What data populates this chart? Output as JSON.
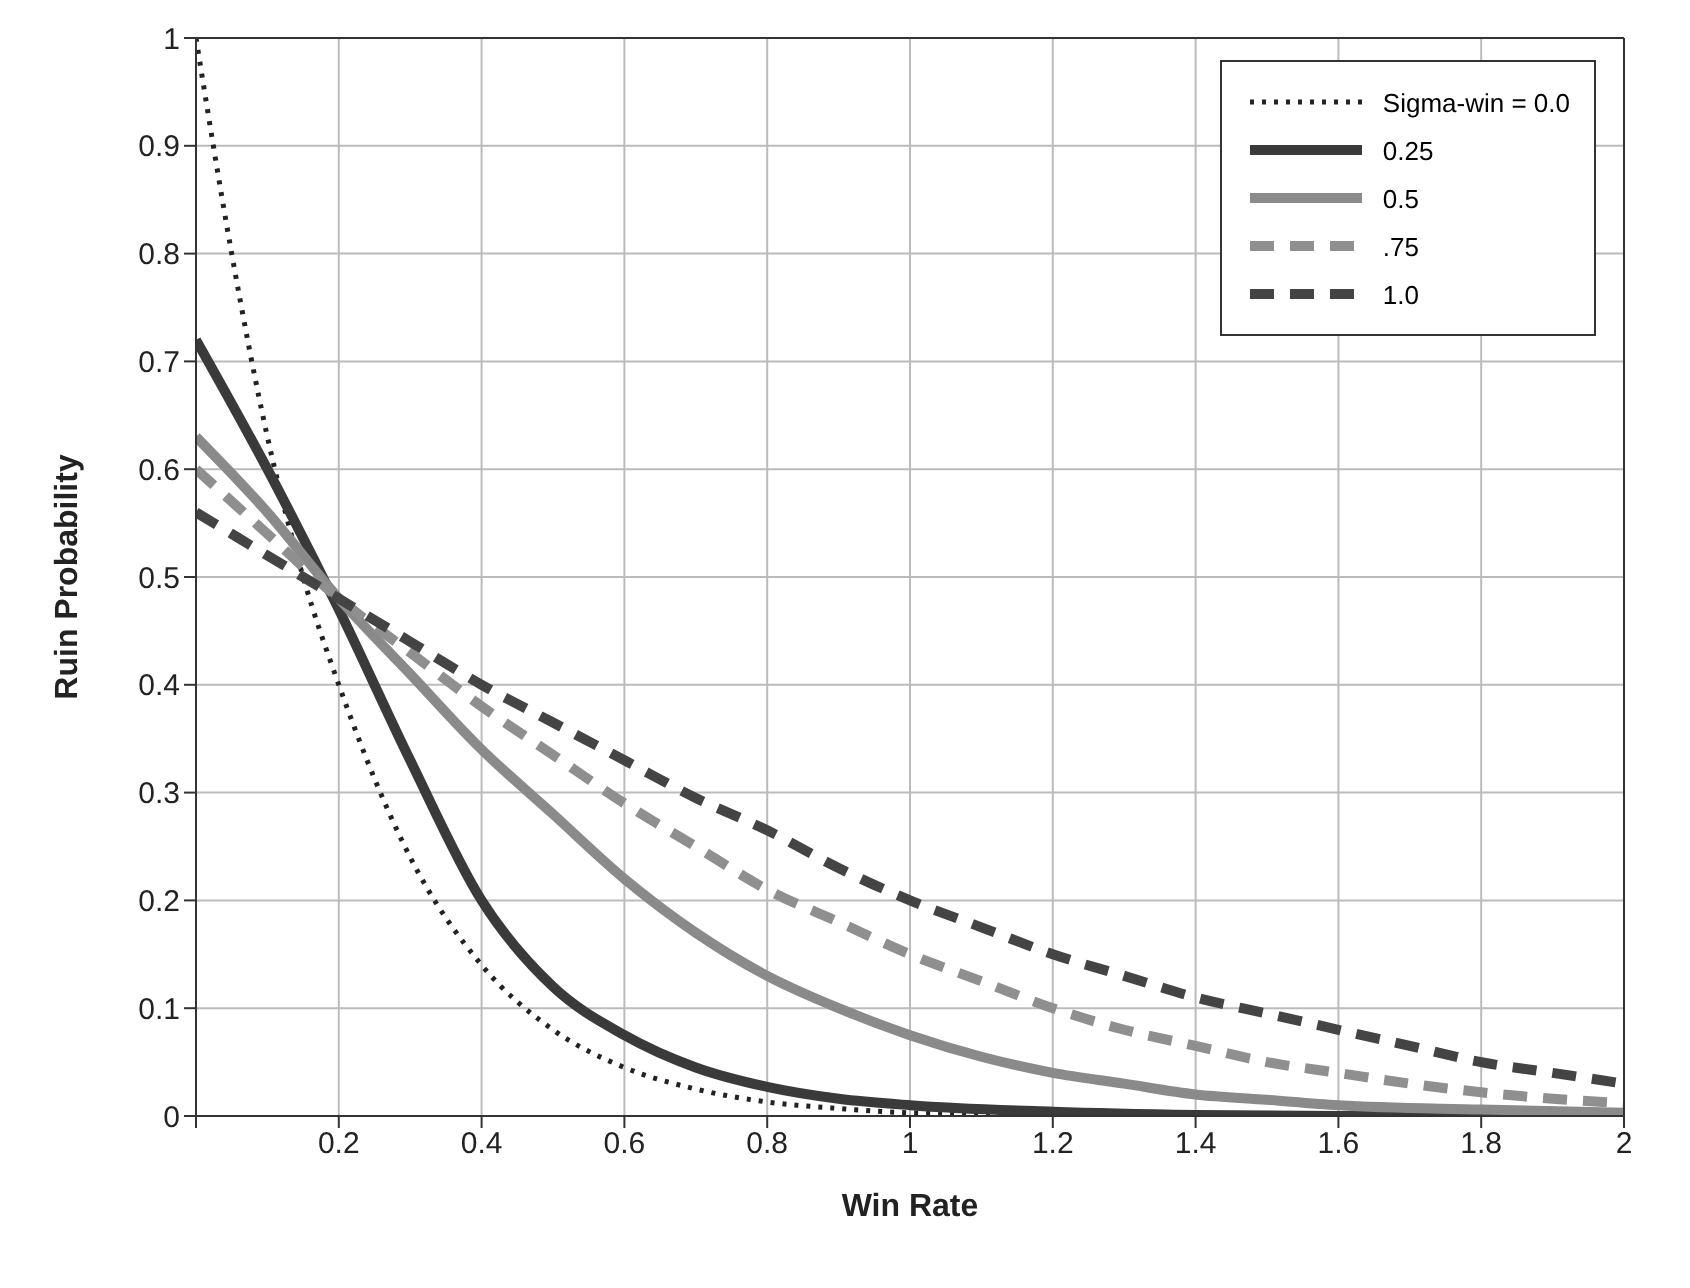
{
  "chart_data": {
    "type": "line",
    "xlabel": "Win Rate",
    "ylabel": "Ruin Probability",
    "xlim": [
      0,
      2
    ],
    "ylim": [
      0,
      1
    ],
    "xticks": [
      {
        "value": 0,
        "label": null
      },
      0.2,
      0.4,
      0.6,
      0.8,
      1,
      1.2,
      1.4,
      1.6,
      1.8,
      2
    ],
    "yticks": [
      0,
      0.1,
      0.2,
      0.3,
      0.4,
      0.5,
      0.6,
      0.7,
      0.8,
      0.9,
      1
    ],
    "grid": true,
    "legend": "top right",
    "marker": "none",
    "series": [
      {
        "name": "Sigma-win = 0.0",
        "color": "#222222",
        "line_style": "dotted",
        "x": [
          0,
          0.05,
          0.1,
          0.15,
          0.2,
          0.3,
          0.4,
          0.5,
          0.6,
          0.7,
          0.8,
          0.9,
          1,
          1.2,
          1.4,
          2
        ],
        "values": [
          1,
          0.8,
          0.63,
          0.5,
          0.4,
          0.24,
          0.14,
          0.08,
          0.045,
          0.025,
          0.013,
          0.007,
          0.003,
          0.001,
          0,
          0
        ]
      },
      {
        "name": "0.25",
        "color": "#3a3a3a",
        "line_style": "solid",
        "x": [
          0,
          0.1,
          0.2,
          0.3,
          0.4,
          0.5,
          0.6,
          0.7,
          0.8,
          0.9,
          1,
          1.2,
          1.4,
          1.6,
          2
        ],
        "values": [
          0.72,
          0.6,
          0.47,
          0.33,
          0.2,
          0.12,
          0.075,
          0.045,
          0.027,
          0.016,
          0.01,
          0.004,
          0.001,
          0,
          0
        ]
      },
      {
        "name": "0.5",
        "color": "#8a8a8a",
        "line_style": "solid",
        "x": [
          0,
          0.1,
          0.2,
          0.3,
          0.4,
          0.5,
          0.6,
          0.7,
          0.8,
          0.9,
          1,
          1.1,
          1.2,
          1.3,
          1.4,
          1.5,
          1.6,
          1.8,
          2
        ],
        "values": [
          0.63,
          0.56,
          0.48,
          0.41,
          0.34,
          0.28,
          0.22,
          0.17,
          0.13,
          0.1,
          0.075,
          0.055,
          0.04,
          0.03,
          0.02,
          0.015,
          0.01,
          0.006,
          0.003
        ]
      },
      {
        "name": ".75",
        "color": "#8f8f8f",
        "line_style": "dashed",
        "x": [
          0,
          0.1,
          0.2,
          0.3,
          0.4,
          0.5,
          0.6,
          0.7,
          0.8,
          0.9,
          1,
          1.1,
          1.2,
          1.3,
          1.4,
          1.5,
          1.6,
          1.7,
          1.8,
          1.9,
          2
        ],
        "values": [
          0.6,
          0.54,
          0.48,
          0.43,
          0.38,
          0.335,
          0.29,
          0.25,
          0.21,
          0.18,
          0.15,
          0.125,
          0.1,
          0.08,
          0.065,
          0.05,
          0.04,
          0.03,
          0.022,
          0.016,
          0.012
        ]
      },
      {
        "name": "1.0",
        "color": "#444444",
        "line_style": "dashed",
        "x": [
          0,
          0.1,
          0.2,
          0.3,
          0.4,
          0.5,
          0.6,
          0.7,
          0.8,
          0.9,
          1,
          1.1,
          1.2,
          1.3,
          1.4,
          1.5,
          1.6,
          1.7,
          1.8,
          1.9,
          2
        ],
        "values": [
          0.56,
          0.52,
          0.48,
          0.44,
          0.4,
          0.365,
          0.33,
          0.295,
          0.265,
          0.23,
          0.2,
          0.175,
          0.15,
          0.13,
          0.11,
          0.095,
          0.08,
          0.065,
          0.05,
          0.04,
          0.03
        ]
      }
    ]
  }
}
